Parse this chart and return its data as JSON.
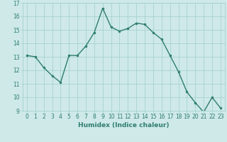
{
  "x": [
    0,
    1,
    2,
    3,
    4,
    5,
    6,
    7,
    8,
    9,
    10,
    11,
    12,
    13,
    14,
    15,
    16,
    17,
    18,
    19,
    20,
    21,
    22,
    23
  ],
  "y": [
    13.1,
    13.0,
    12.2,
    11.6,
    11.1,
    13.1,
    13.1,
    13.8,
    14.8,
    16.6,
    15.2,
    14.9,
    15.1,
    15.5,
    15.4,
    14.8,
    14.3,
    13.1,
    11.9,
    10.4,
    9.6,
    8.9,
    10.0,
    9.2
  ],
  "line_color": "#2e7d6e",
  "marker": "o",
  "markersize": 2.0,
  "linewidth": 1.0,
  "xlabel": "Humidex (Indice chaleur)",
  "ylim": [
    9,
    17
  ],
  "xlim": [
    -0.5,
    23.5
  ],
  "yticks": [
    9,
    10,
    11,
    12,
    13,
    14,
    15,
    16,
    17
  ],
  "xticks": [
    0,
    1,
    2,
    3,
    4,
    5,
    6,
    7,
    8,
    9,
    10,
    11,
    12,
    13,
    14,
    15,
    16,
    17,
    18,
    19,
    20,
    21,
    22,
    23
  ],
  "bg_color": "#cee9e8",
  "grid_color": "#9ecfcc",
  "tick_fontsize": 5.5,
  "xlabel_fontsize": 6.5
}
